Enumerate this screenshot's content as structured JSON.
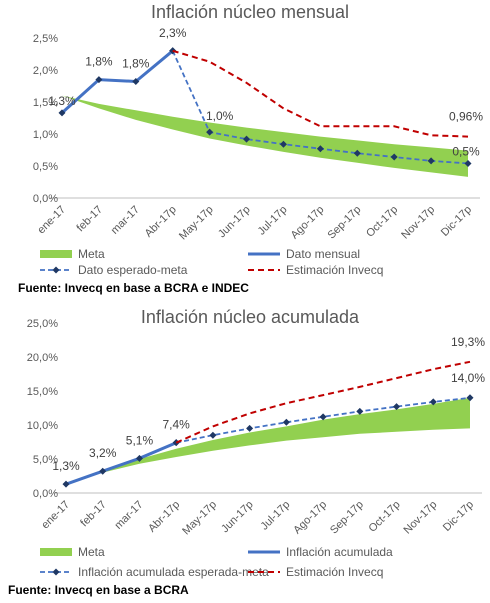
{
  "chart_data": [
    {
      "type": "line",
      "title": "Inflación núcleo mensual",
      "categories": [
        "ene-17",
        "feb-17",
        "mar-17",
        "Abr-17p",
        "May-17p",
        "Jun-17p",
        "Jul-17p",
        "Ago-17p",
        "Sep-17p",
        "Oct-17p",
        "Nov-17p",
        "Dic-17p"
      ],
      "y_ticks": [
        "0,0%",
        "0,5%",
        "1,0%",
        "1,5%",
        "2,0%",
        "2,5%"
      ],
      "ylim": [
        0,
        2.5
      ],
      "grid": false,
      "legend_position": "bottom",
      "series": [
        {
          "name": "Meta",
          "kind": "band",
          "color": "#92D050",
          "low": [
            1.6,
            1.4,
            1.22,
            1.07,
            0.93,
            0.82,
            0.72,
            0.63,
            0.55,
            0.47,
            0.4,
            0.33
          ],
          "high": [
            1.6,
            1.47,
            1.37,
            1.27,
            1.18,
            1.1,
            1.03,
            0.96,
            0.9,
            0.84,
            0.79,
            0.74
          ]
        },
        {
          "name": "Dato mensual",
          "kind": "solid",
          "color": "#4472C4",
          "values": [
            1.33,
            1.85,
            1.82,
            2.3,
            null,
            null,
            null,
            null,
            null,
            null,
            null,
            null
          ]
        },
        {
          "name": "Dato esperado-meta",
          "kind": "dashed-marker",
          "color": "#4472C4",
          "values": [
            null,
            null,
            null,
            2.3,
            1.03,
            0.92,
            0.84,
            0.77,
            0.7,
            0.64,
            0.58,
            0.54
          ]
        },
        {
          "name": "Estimación Invecq",
          "kind": "dashed",
          "color": "#C00000",
          "values": [
            null,
            null,
            null,
            2.3,
            2.13,
            1.8,
            1.4,
            1.12,
            1.12,
            1.12,
            0.98,
            0.96
          ]
        }
      ],
      "data_labels": [
        {
          "index": 0,
          "text": "1,3%"
        },
        {
          "index": 1,
          "text": "1,8%"
        },
        {
          "index": 2,
          "text": "1,8%"
        },
        {
          "index": 3,
          "text": "2,3%"
        },
        {
          "index": 4,
          "text": "1,0%"
        },
        {
          "index": 11,
          "text": "0,96%"
        },
        {
          "index": 11,
          "text": "0,5%"
        }
      ],
      "source": "Fuente: Invecq en base a BCRA e INDEC"
    },
    {
      "type": "line",
      "title": "Inflación núcleo acumulada",
      "categories": [
        "ene-17",
        "feb-17",
        "mar-17",
        "Abr-17p",
        "May-17p",
        "Jun-17p",
        "Jul-17p",
        "Ago-17p",
        "Sep-17p",
        "Oct-17p",
        "Nov-17p",
        "Dic-17p"
      ],
      "y_ticks": [
        "0,0%",
        "5,0%",
        "10,0%",
        "15,0%",
        "20,0%",
        "25,0%"
      ],
      "ylim": [
        0,
        25
      ],
      "grid": false,
      "legend_position": "bottom",
      "series": [
        {
          "name": "Meta",
          "kind": "band",
          "color": "#92D050",
          "low": [
            1.3,
            3.0,
            4.3,
            5.3,
            6.2,
            7.0,
            7.7,
            8.2,
            8.7,
            9.0,
            9.3,
            9.5
          ],
          "high": [
            1.3,
            3.2,
            5.0,
            6.5,
            7.8,
            8.9,
            9.8,
            10.8,
            11.6,
            12.3,
            13.1,
            14.0
          ]
        },
        {
          "name": "Inflación acumulada",
          "kind": "solid",
          "color": "#4472C4",
          "values": [
            1.3,
            3.2,
            5.1,
            7.4,
            null,
            null,
            null,
            null,
            null,
            null,
            null,
            null
          ]
        },
        {
          "name": "Inflación acumulada esperada-meta",
          "kind": "dashed-marker",
          "color": "#4472C4",
          "values": [
            null,
            null,
            null,
            7.4,
            8.5,
            9.5,
            10.4,
            11.2,
            12.0,
            12.7,
            13.4,
            14.0
          ]
        },
        {
          "name": "Estimación Invecq",
          "kind": "dashed",
          "color": "#C00000",
          "values": [
            null,
            null,
            null,
            7.4,
            9.8,
            11.7,
            13.2,
            14.4,
            15.6,
            16.9,
            18.2,
            19.3
          ]
        }
      ],
      "data_labels": [
        {
          "index": 0,
          "text": "1,3%"
        },
        {
          "index": 1,
          "text": "3,2%"
        },
        {
          "index": 2,
          "text": "5,1%"
        },
        {
          "index": 3,
          "text": "7,4%"
        },
        {
          "index": 11,
          "text": "19,3%"
        },
        {
          "index": 11,
          "text": "14,0%"
        }
      ],
      "source": "Fuente: Invecq en base a BCRA"
    }
  ]
}
